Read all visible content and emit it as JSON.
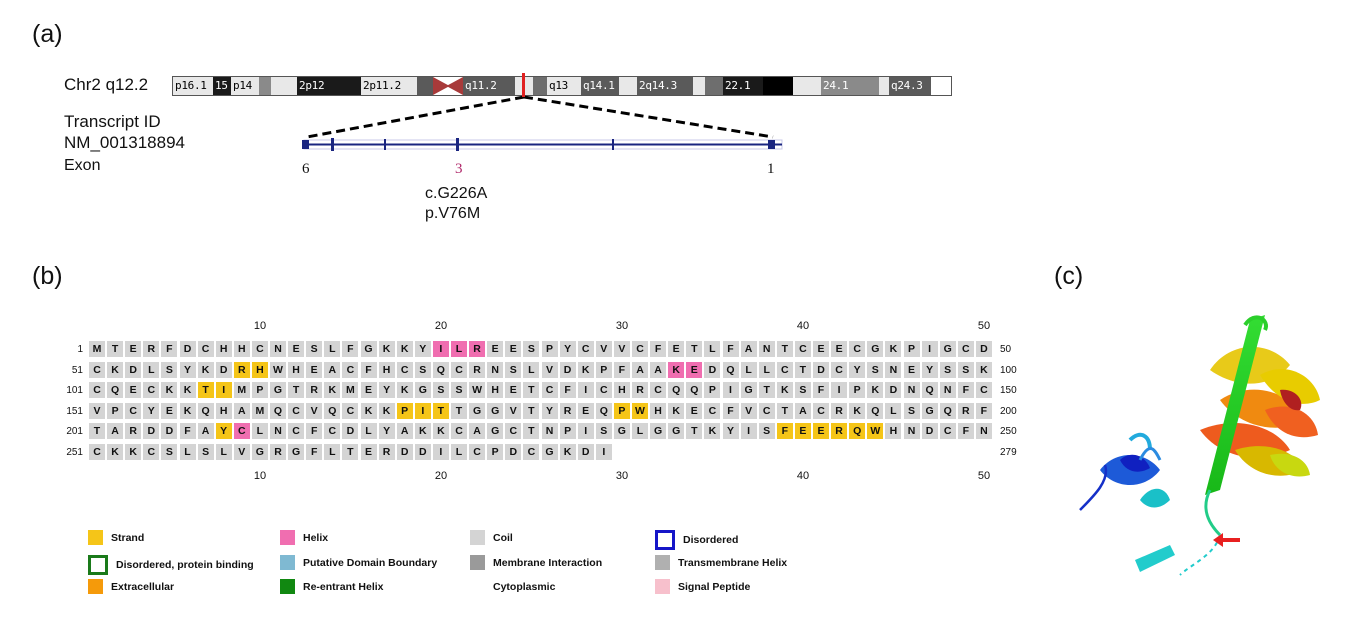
{
  "panels": {
    "a": "(a)",
    "b": "(b)",
    "c": "(c)"
  },
  "chromosome": {
    "label": "Chr2 q12.2",
    "bands": [
      {
        "name": "p16.1",
        "color": "#e8e8e8",
        "text": "#000"
      },
      {
        "name": "15",
        "color": "#1a1a1a",
        "text": "#fff"
      },
      {
        "name": "p14",
        "color": "#e8e8e8",
        "text": "#000"
      },
      {
        "name": "",
        "color": "#8a8a8a",
        "text": "#000"
      },
      {
        "name": "",
        "color": "#e8e8e8",
        "text": "#000"
      },
      {
        "name": "2p12",
        "color": "#1a1a1a",
        "text": "#fff"
      },
      {
        "name": "2p11.2",
        "color": "#e8e8e8",
        "text": "#000"
      },
      {
        "name": "",
        "color": "#5a5a5a",
        "text": "#000"
      },
      {
        "name": "",
        "color": "#a83a3a",
        "text": "#000"
      },
      {
        "name": "q11.2",
        "color": "#5a5a5a",
        "text": "#fff"
      },
      {
        "name": "",
        "color": "#e8e8e8",
        "text": "#000"
      },
      {
        "name": "",
        "color": "#6e6e6e",
        "text": "#000"
      },
      {
        "name": "q13",
        "color": "#e8e8e8",
        "text": "#000"
      },
      {
        "name": "q14.1",
        "color": "#5a5a5a",
        "text": "#fff"
      },
      {
        "name": "",
        "color": "#e8e8e8",
        "text": "#000"
      },
      {
        "name": "2q14.3",
        "color": "#5a5a5a",
        "text": "#fff"
      },
      {
        "name": "",
        "color": "#e8e8e8",
        "text": "#000"
      },
      {
        "name": "",
        "color": "#6e6e6e",
        "text": "#000"
      },
      {
        "name": "22.1",
        "color": "#1a1a1a",
        "text": "#fff"
      },
      {
        "name": "",
        "color": "#000",
        "text": "#000"
      },
      {
        "name": "",
        "color": "#e8e8e8",
        "text": "#000"
      },
      {
        "name": "24.1",
        "color": "#8a8a8a",
        "text": "#fff"
      },
      {
        "name": "",
        "color": "#e8e8e8",
        "text": "#000"
      },
      {
        "name": "q24.3",
        "color": "#5a5a5a",
        "text": "#fff"
      }
    ]
  },
  "transcript": {
    "label1": "Transcript ID",
    "label2": "NM_001318894",
    "label3": "Exon",
    "exon_left": "6",
    "exon_mut": "3",
    "exon_right": "1",
    "variant_c": "c.G226A",
    "variant_p": "p.V76M"
  },
  "sequence": {
    "top_ticks": [
      "10",
      "20",
      "30",
      "40",
      "50"
    ],
    "bottom_ticks": [
      "10",
      "20",
      "30",
      "40",
      "50"
    ],
    "rows": [
      {
        "start": "1",
        "end": "50",
        "seq": "MTERFDCHHCNESLFGKKYILREESPYCVVCFETLFANTCEECGKPIGCD"
      },
      {
        "start": "51",
        "end": "100",
        "seq": "CKDLSYKDRHWHEACFHCSQCRNSLVDKPFAAKEDQLLCTDCYSNEYSSK"
      },
      {
        "start": "101",
        "end": "150",
        "seq": "CQECKKTIMPGTRKMEYKGSSWHETCFICHRCQQPIGTKSFIPKDNQNFC"
      },
      {
        "start": "151",
        "end": "200",
        "seq": "VPCYEKQHAMQCVQCKKPITTGGVTYREQPWHKECFVCTACRKQLSGQRF"
      },
      {
        "start": "201",
        "end": "250",
        "seq": "TARDDFAYCLNCFCDLYAKKCAGCTNPISGLGGTKYISFEERQWHNDCFN"
      },
      {
        "start": "251",
        "end": "279",
        "seq": "CKKCSLSLVGRGFLTERDDILCPDCGKDI"
      }
    ],
    "strand": [
      59,
      60,
      107,
      108,
      168,
      169,
      170,
      180,
      181,
      208,
      239,
      240,
      241,
      242,
      243,
      244
    ],
    "helix": [
      20,
      21,
      22,
      83,
      84,
      209
    ]
  },
  "legend": [
    {
      "label": "Strand",
      "color": "#f5c518",
      "style": "fill"
    },
    {
      "label": "Helix",
      "color": "#f06eb0",
      "style": "fill"
    },
    {
      "label": "Coil",
      "color": "#d4d4d4",
      "style": "fill"
    },
    {
      "label": "Disordered",
      "color": "#1515c8",
      "style": "box"
    },
    {
      "label": "Disordered, protein binding",
      "color": "#1a7a1a",
      "style": "box"
    },
    {
      "label": "Putative Domain Boundary",
      "color": "#7fb9d2",
      "style": "fill"
    },
    {
      "label": "Membrane Interaction",
      "color": "#9a9a9a",
      "style": "fill"
    },
    {
      "label": "Transmembrane Helix",
      "color": "#b0b0b0",
      "style": "fill"
    },
    {
      "label": "Extracellular",
      "color": "#f59a0a",
      "style": "fill"
    },
    {
      "label": "Re-entrant Helix",
      "color": "#118811",
      "style": "fill"
    },
    {
      "label": "Cytoplasmic",
      "color": "#ffffff",
      "style": "none"
    },
    {
      "label": "Signal Peptide",
      "color": "#f7c0cc",
      "style": "fill"
    }
  ]
}
